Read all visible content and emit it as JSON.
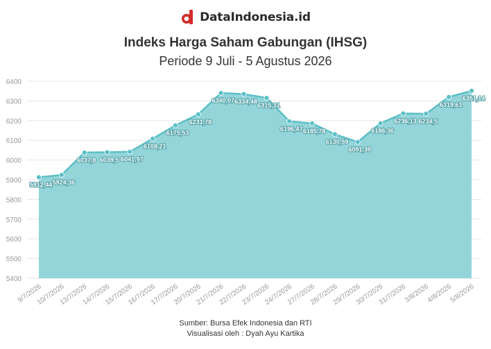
{
  "brand": {
    "name": "DataIndonesia.id",
    "logo_icon": "dataindonesia-logo-icon",
    "logo_color": "#d42b2b"
  },
  "header": {
    "title": "Indeks Harga Saham Gabungan (IHSG)",
    "subtitle": "Periode 9 Juli - 5 Agustus 2026"
  },
  "footer": {
    "source": "Sumber: Bursa Efek Indonesia dan RTI",
    "credit": "Visualisasi oleh : Dyah Ayu Kartika"
  },
  "colors": {
    "area_fill": "#8dd3d7",
    "line": "#5cbfc6",
    "marker": "#5cbfc6",
    "grid": "#e6e6e6",
    "tick_text": "#999999"
  },
  "chart_data": {
    "type": "area",
    "title": "Indeks Harga Saham Gabungan (IHSG)",
    "subtitle": "Periode 9 Juli - 5 Agustus 2026",
    "categories": [
      "9/7/2026",
      "10/7/2026",
      "13/7/2026",
      "14/7/2026",
      "15/7/2026",
      "16/7/2026",
      "17/7/2026",
      "20/7/2026",
      "21/7/2026",
      "22/7/2026",
      "23/7/2026",
      "24/7/2026",
      "27/7/2026",
      "28/7/2026",
      "29/7/2026",
      "30/7/2026",
      "31/7/2026",
      "3/8/2026",
      "4/8/2026",
      "5/8/2026"
    ],
    "values": [
      5912.44,
      5924.36,
      6037.8,
      6039.5,
      6041.97,
      6108.21,
      6175.53,
      6231.78,
      6340.07,
      6334.48,
      6315.31,
      6196.47,
      6185.78,
      6130.59,
      6091.39,
      6186.36,
      6236.13,
      6234.5,
      6319.61,
      6351.14
    ],
    "data_labels": [
      "5912,44",
      "5924,36",
      "6037,8",
      "6039,5",
      "6041,97",
      "6108,21",
      "6175,53",
      "6231,78",
      "6340,07",
      "6334,48",
      "6315,31",
      "6196,47",
      "6185,78",
      "6130,59",
      "6091,39",
      "6186,36",
      "6236,13",
      "6234,5",
      "6319,61",
      "6351,14"
    ],
    "yticks": [
      5400,
      5500,
      5600,
      5700,
      5800,
      5900,
      6000,
      6100,
      6200,
      6300,
      6400
    ],
    "ylim": [
      5400,
      6400
    ],
    "xlabel": "",
    "ylabel": "",
    "grid": true,
    "legend": "none"
  }
}
